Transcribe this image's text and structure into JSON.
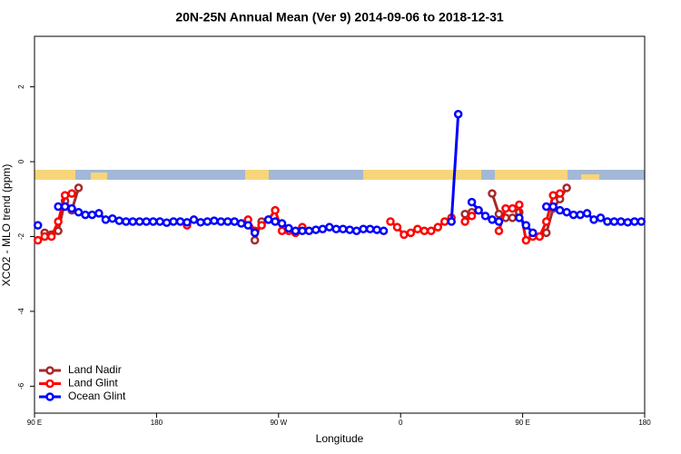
{
  "chart_data": {
    "type": "line",
    "title": "20N-25N Annual Mean (Ver 9)   2014-09-06 to 2018-12-31",
    "x_label": "Longitude",
    "y_label": "XCO2 - MLO trend (ppm)",
    "xlim": [
      90,
      540
    ],
    "ylim": [
      -6.72,
      3.35
    ],
    "xticks": [
      {
        "value": 90,
        "label": "90 E"
      },
      180,
      {
        "value": 270,
        "label": "90 W"
      },
      {
        "value": 360,
        "label": "0"
      },
      {
        "value": 450,
        "label": "90 E"
      },
      {
        "value": 540,
        "label": "180"
      }
    ],
    "yticks": [
      -6,
      -4,
      -2,
      0,
      2
    ],
    "legend": "lower left",
    "x": [
      92.5,
      97.5,
      102.5,
      107.5,
      112.5,
      117.5,
      122.5,
      127.5,
      132.5,
      137.5,
      142.5,
      147.5,
      152.5,
      157.5,
      162.5,
      167.5,
      172.5,
      177.5,
      182.5,
      187.5,
      192.5,
      197.5,
      202.5,
      207.5,
      212.5,
      217.5,
      222.5,
      227.5,
      232.5,
      237.5,
      242.5,
      247.5,
      252.5,
      257.5,
      262.5,
      267.5,
      272.5,
      277.5,
      282.5,
      287.5,
      292.5,
      297.5,
      302.5,
      307.5,
      312.5,
      317.5,
      322.5,
      327.5,
      332.5,
      337.5,
      342.5,
      347.5,
      352.5,
      357.5,
      362.5,
      367.5,
      372.5,
      377.5,
      382.5,
      387.5,
      392.5,
      397.5,
      402.5,
      407.5,
      412.5,
      417.5,
      422.5,
      427.5,
      432.5,
      437.5,
      442.5,
      447.5,
      452.5,
      457.5,
      462.5,
      467.5,
      472.5,
      477.5,
      482.5,
      487.5,
      492.5,
      497.5,
      502.5,
      507.5,
      512.5,
      517.5,
      522.5,
      527.5,
      532.5,
      537.5
    ],
    "series": [
      {
        "name": "Land Nadir",
        "color": "#a52a2a",
        "values": [
          null,
          -1.9,
          -1.95,
          -1.85,
          -1.05,
          -1.3,
          -0.7,
          null,
          null,
          null,
          null,
          null,
          null,
          null,
          null,
          null,
          null,
          null,
          null,
          null,
          null,
          null,
          null,
          null,
          null,
          null,
          null,
          null,
          null,
          null,
          null,
          null,
          -2.1,
          -1.6,
          null,
          null,
          null,
          null,
          null,
          null,
          null,
          null,
          null,
          null,
          null,
          null,
          null,
          null,
          null,
          null,
          null,
          null,
          null,
          null,
          null,
          null,
          null,
          null,
          null,
          null,
          null,
          null,
          null,
          -1.4,
          -1.35,
          null,
          null,
          -0.85,
          -1.4,
          -1.5,
          -1.5,
          -1.35,
          null,
          null,
          null,
          -1.9,
          -1.25,
          -1.0,
          -0.7,
          null,
          null,
          null,
          null,
          null,
          null,
          null,
          null,
          null,
          null,
          null
        ]
      },
      {
        "name": "Land Glint",
        "color": "#ff0000",
        "values": [
          -2.1,
          -2.0,
          -2.0,
          -1.6,
          -0.9,
          -0.85,
          null,
          null,
          null,
          null,
          null,
          null,
          null,
          null,
          null,
          null,
          null,
          null,
          null,
          null,
          null,
          null,
          -1.7,
          null,
          null,
          null,
          null,
          null,
          null,
          null,
          null,
          -1.55,
          -1.85,
          -1.7,
          -1.55,
          -1.3,
          -1.85,
          -1.85,
          -1.9,
          -1.75,
          null,
          null,
          null,
          null,
          null,
          null,
          null,
          null,
          null,
          null,
          null,
          null,
          -1.6,
          -1.75,
          -1.95,
          -1.9,
          -1.8,
          -1.85,
          -1.85,
          -1.75,
          -1.6,
          -1.5,
          null,
          -1.6,
          -1.45,
          -1.3,
          null,
          null,
          -1.85,
          -1.25,
          -1.25,
          -1.15,
          -2.1,
          -2.0,
          -2.0,
          -1.6,
          -0.9,
          -0.85,
          null,
          null,
          null,
          null,
          null,
          null,
          null,
          null,
          null,
          null,
          null,
          null
        ]
      },
      {
        "name": "Ocean Glint",
        "color": "#0000ff",
        "values": [
          -1.7,
          null,
          null,
          -1.2,
          -1.2,
          -1.25,
          -1.35,
          -1.42,
          -1.42,
          -1.38,
          -1.55,
          -1.52,
          -1.58,
          -1.6,
          -1.6,
          -1.6,
          -1.6,
          -1.6,
          -1.6,
          -1.63,
          -1.6,
          -1.6,
          -1.62,
          -1.55,
          -1.62,
          -1.6,
          -1.58,
          -1.6,
          -1.6,
          -1.6,
          -1.65,
          -1.7,
          -1.9,
          null,
          -1.55,
          -1.6,
          -1.65,
          -1.78,
          -1.85,
          -1.85,
          -1.85,
          -1.82,
          -1.8,
          -1.75,
          -1.8,
          -1.8,
          -1.82,
          -1.85,
          -1.8,
          -1.8,
          -1.82,
          -1.85,
          null,
          null,
          null,
          null,
          null,
          null,
          null,
          null,
          null,
          -1.6,
          1.27,
          null,
          -1.08,
          -1.3,
          -1.45,
          -1.55,
          -1.6,
          null,
          null,
          -1.5,
          -1.7,
          -1.9,
          null,
          -1.2,
          -1.2,
          -1.3,
          -1.35,
          -1.42,
          -1.42,
          -1.38,
          -1.55,
          -1.5,
          -1.6,
          -1.6,
          -1.6,
          -1.62,
          -1.6,
          -1.6
        ]
      }
    ]
  }
}
